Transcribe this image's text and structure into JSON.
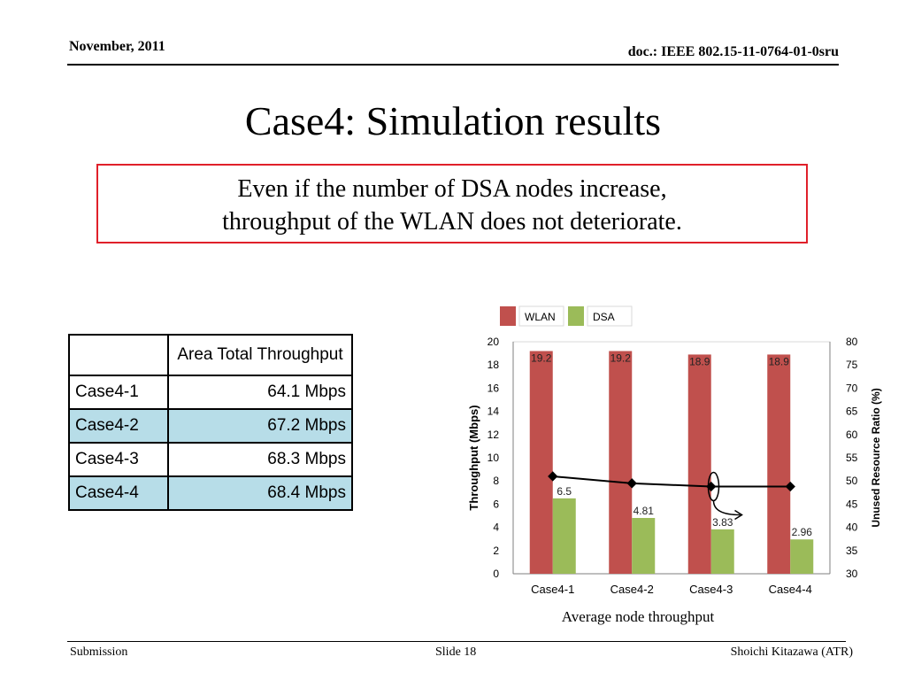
{
  "header": {
    "date": "November, 2011",
    "doc": "doc.: IEEE 802.15-11-0764-01-0sru"
  },
  "title": "Case4: Simulation results",
  "callout": {
    "line1": "Even if the number of DSA nodes increase,",
    "line2": "throughput of the WLAN does not deteriorate."
  },
  "table": {
    "header": [
      "",
      "Area Total Throughput"
    ],
    "rows": [
      {
        "name": "Case4-1",
        "value": "64.1 Mbps"
      },
      {
        "name": "Case4-2",
        "value": "67.2 Mbps"
      },
      {
        "name": "Case4-3",
        "value": "68.3 Mbps"
      },
      {
        "name": "Case4-4",
        "value": "68.4 Mbps"
      }
    ]
  },
  "chart_data": {
    "type": "bar",
    "categories": [
      "Case4-1",
      "Case4-2",
      "Case4-3",
      "Case4-4"
    ],
    "series": [
      {
        "name": "WLAN",
        "values": [
          19.2,
          19.2,
          18.9,
          18.9
        ],
        "color": "#c0504d",
        "labels": [
          "19.2",
          "19.2",
          "18.9",
          "18.9"
        ]
      },
      {
        "name": "DSA",
        "values": [
          6.5,
          4.81,
          3.83,
          2.96
        ],
        "color": "#9bbb59",
        "labels": [
          "6.5",
          "4.81",
          "3.83",
          "2.96"
        ]
      }
    ],
    "line_series": {
      "values": [
        51,
        49.5,
        48.8,
        48.8
      ],
      "axis": "right",
      "color": "#000000"
    },
    "ylabel": "Throughput (Mbps)",
    "ylabel_right": "Unused Resource Ratio (%)",
    "ylim": [
      0,
      20
    ],
    "ylim_right": [
      30,
      80
    ],
    "yticks": [
      0,
      2,
      4,
      6,
      8,
      10,
      12,
      14,
      16,
      18,
      20
    ],
    "yticks_right": [
      30,
      35,
      40,
      45,
      50,
      55,
      60,
      65,
      70,
      75,
      80
    ],
    "caption": "Average node throughput",
    "legend_position": "top"
  },
  "footer": {
    "left": "Submission",
    "middle": "Slide 18",
    "right": "Shoichi Kitazawa (ATR)"
  }
}
